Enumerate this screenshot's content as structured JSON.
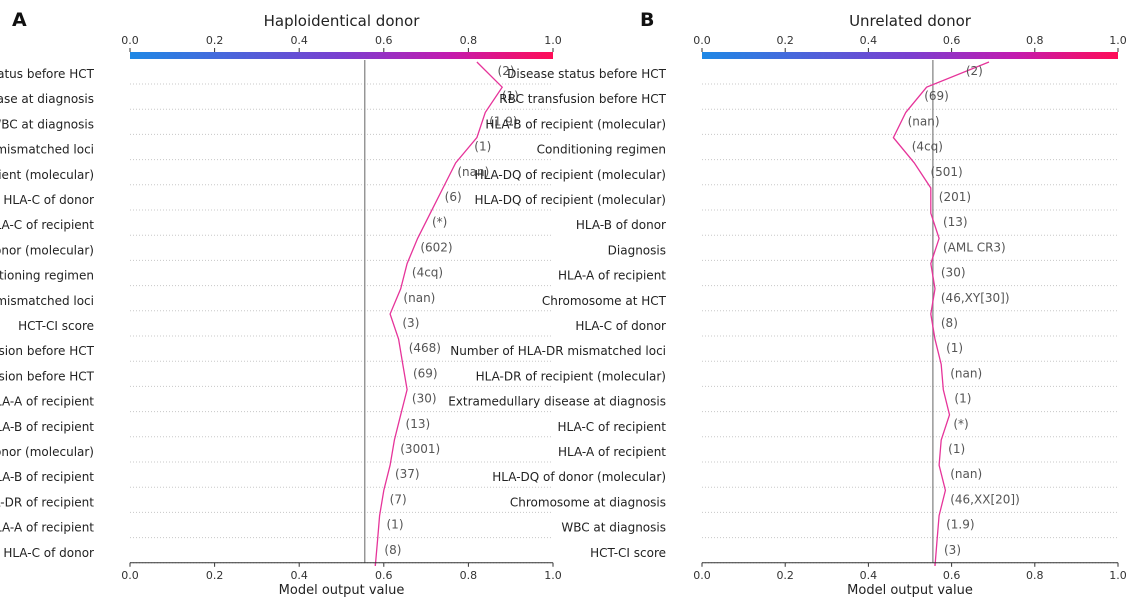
{
  "chart_data": [
    {
      "type": "line",
      "panel_label": "A",
      "title": "Haploidentical donor",
      "xlabel": "Model output value",
      "xlim": [
        0.0,
        1.0
      ],
      "xticks": [
        "0.0",
        "0.2",
        "0.4",
        "0.6",
        "0.8",
        "1.0"
      ],
      "colorbar_ticks": [
        "0.0",
        "0.2",
        "0.4",
        "0.6",
        "0.8",
        "1.0"
      ],
      "colorbar_colors": [
        "#1e88e5",
        "#ff0d57"
      ],
      "base_value": 0.555,
      "line_color": "#e6349a",
      "grid": false,
      "features": [
        {
          "name": "Disease status before HCT",
          "value": "(2)"
        },
        {
          "name": "Extramedullary disease at diagnosis",
          "value": "(1)"
        },
        {
          "name": "WBC at diagnosis",
          "value": "(1.9)"
        },
        {
          "name": "Number of HLA-DR mismatched loci",
          "value": "(1)"
        },
        {
          "name": "HLA-B of recipient (molecular)",
          "value": "(nan)"
        },
        {
          "name": "HLA-C of donor",
          "value": "(6)"
        },
        {
          "name": "HLA-C of recipient",
          "value": "(*)"
        },
        {
          "name": "HLA-C of donor (molecular)",
          "value": "(602)"
        },
        {
          "name": "Conditioning regimen",
          "value": "(4cq)"
        },
        {
          "name": "Number of HLA-A, B, C, DR mismatched loci",
          "value": "(nan)"
        },
        {
          "name": "HCT-CI score",
          "value": "(3)"
        },
        {
          "name": "Platelet transfusion before HCT",
          "value": "(468)"
        },
        {
          "name": "RBC transfusion before HCT",
          "value": "(69)"
        },
        {
          "name": "HLA-A of recipient",
          "value": "(30)"
        },
        {
          "name": "HLA-B of recipient",
          "value": "(13)"
        },
        {
          "name": "HLA-A of donor (molecular)",
          "value": "(3001)"
        },
        {
          "name": "HLA-B of recipient",
          "value": "(37)"
        },
        {
          "name": "HLA-DR of recipient",
          "value": "(7)"
        },
        {
          "name": "HLA-A of recipient",
          "value": "(1)"
        },
        {
          "name": "HLA-C of donor",
          "value": "(8)"
        }
      ],
      "path_x": [
        0.82,
        0.88,
        0.84,
        0.82,
        0.77,
        0.74,
        0.71,
        0.68,
        0.655,
        0.64,
        0.615,
        0.635,
        0.645,
        0.655,
        0.64,
        0.625,
        0.615,
        0.6,
        0.59,
        0.585,
        0.58
      ]
    },
    {
      "type": "line",
      "panel_label": "B",
      "title": "Unrelated donor",
      "xlabel": "Model output value",
      "xlim": [
        0.0,
        1.0
      ],
      "xticks": [
        "0.0",
        "0.2",
        "0.4",
        "0.6",
        "0.8",
        "1.0"
      ],
      "colorbar_ticks": [
        "0.0",
        "0.2",
        "0.4",
        "0.6",
        "0.8",
        "1.0"
      ],
      "colorbar_colors": [
        "#1e88e5",
        "#ff0d57"
      ],
      "base_value": 0.555,
      "line_color": "#e6349a",
      "grid": false,
      "features": [
        {
          "name": "Disease status before HCT",
          "value": "(2)"
        },
        {
          "name": "RBC transfusion before HCT",
          "value": "(69)"
        },
        {
          "name": "HLA-B of recipient (molecular)",
          "value": "(nan)"
        },
        {
          "name": "Conditioning regimen",
          "value": "(4cq)"
        },
        {
          "name": "HLA-DQ of recipient (molecular)",
          "value": "(501)"
        },
        {
          "name": "HLA-DQ of recipient (molecular)",
          "value": "(201)"
        },
        {
          "name": "HLA-B of donor",
          "value": "(13)"
        },
        {
          "name": "Diagnosis",
          "value": "(AML CR3)"
        },
        {
          "name": "HLA-A of recipient",
          "value": "(30)"
        },
        {
          "name": "Chromosome at HCT",
          "value": "(46,XY[30])"
        },
        {
          "name": "HLA-C of donor",
          "value": "(8)"
        },
        {
          "name": "Number of HLA-DR mismatched loci",
          "value": "(1)"
        },
        {
          "name": "HLA-DR of recipient (molecular)",
          "value": "(nan)"
        },
        {
          "name": "Extramedullary disease at diagnosis",
          "value": "(1)"
        },
        {
          "name": "HLA-C of recipient",
          "value": "(*)"
        },
        {
          "name": "HLA-A of recipient",
          "value": "(1)"
        },
        {
          "name": "HLA-DQ of donor (molecular)",
          "value": "(nan)"
        },
        {
          "name": "Chromosome at diagnosis",
          "value": "(46,XX[20])"
        },
        {
          "name": "WBC at diagnosis",
          "value": "(1.9)"
        },
        {
          "name": "HCT-CI score",
          "value": "(3)"
        }
      ],
      "path_x": [
        0.69,
        0.54,
        0.49,
        0.46,
        0.51,
        0.55,
        0.55,
        0.57,
        0.55,
        0.56,
        0.55,
        0.56,
        0.575,
        0.58,
        0.595,
        0.575,
        0.57,
        0.585,
        0.57,
        0.565,
        0.56
      ]
    }
  ]
}
